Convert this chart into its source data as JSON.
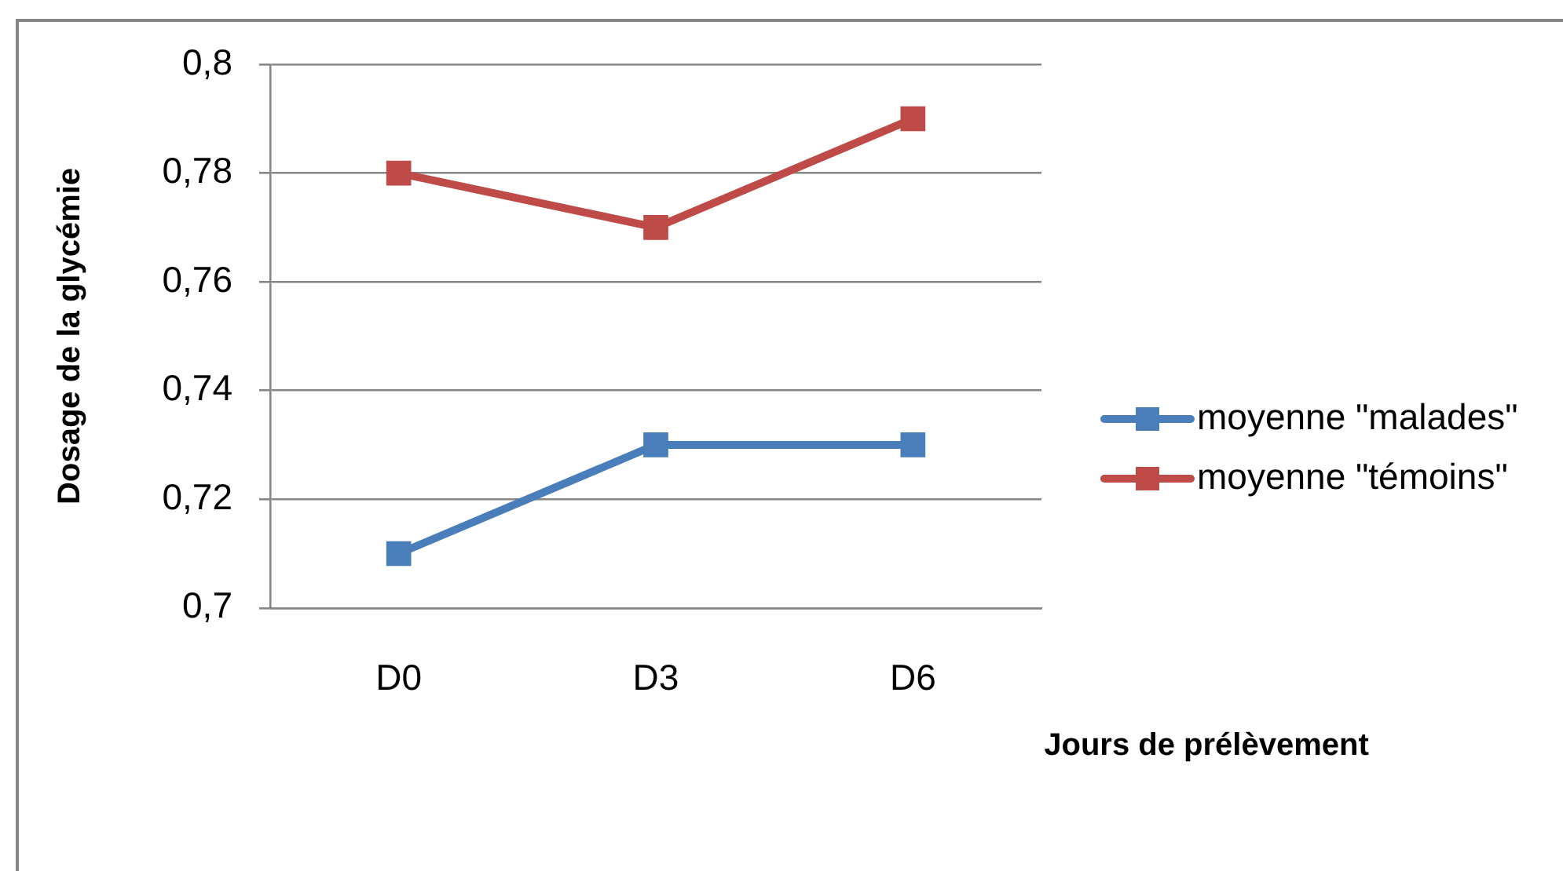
{
  "chart_data": {
    "type": "line",
    "xlabel": "Jours de prélèvement",
    "ylabel": "Dosage de la glycémie",
    "categories": [
      "D0",
      "D3",
      "D6"
    ],
    "series": [
      {
        "name": "moyenne \"malades\"",
        "color": "#4a7ebb",
        "values": [
          0.71,
          0.73,
          0.73
        ]
      },
      {
        "name": "moyenne \"témoins\"",
        "color": "#be4b48",
        "values": [
          0.78,
          0.77,
          0.79
        ]
      }
    ],
    "ylim": [
      0.7,
      0.8
    ],
    "yticks": [
      {
        "value": 0.7,
        "label": "0,7"
      },
      {
        "value": 0.72,
        "label": "0,72"
      },
      {
        "value": 0.74,
        "label": "0,74"
      },
      {
        "value": 0.76,
        "label": "0,76"
      },
      {
        "value": 0.78,
        "label": "0,78"
      },
      {
        "value": 0.8,
        "label": "0,8"
      }
    ],
    "grid": "y",
    "legend": "right",
    "marker": "square",
    "line_style": "solid"
  }
}
